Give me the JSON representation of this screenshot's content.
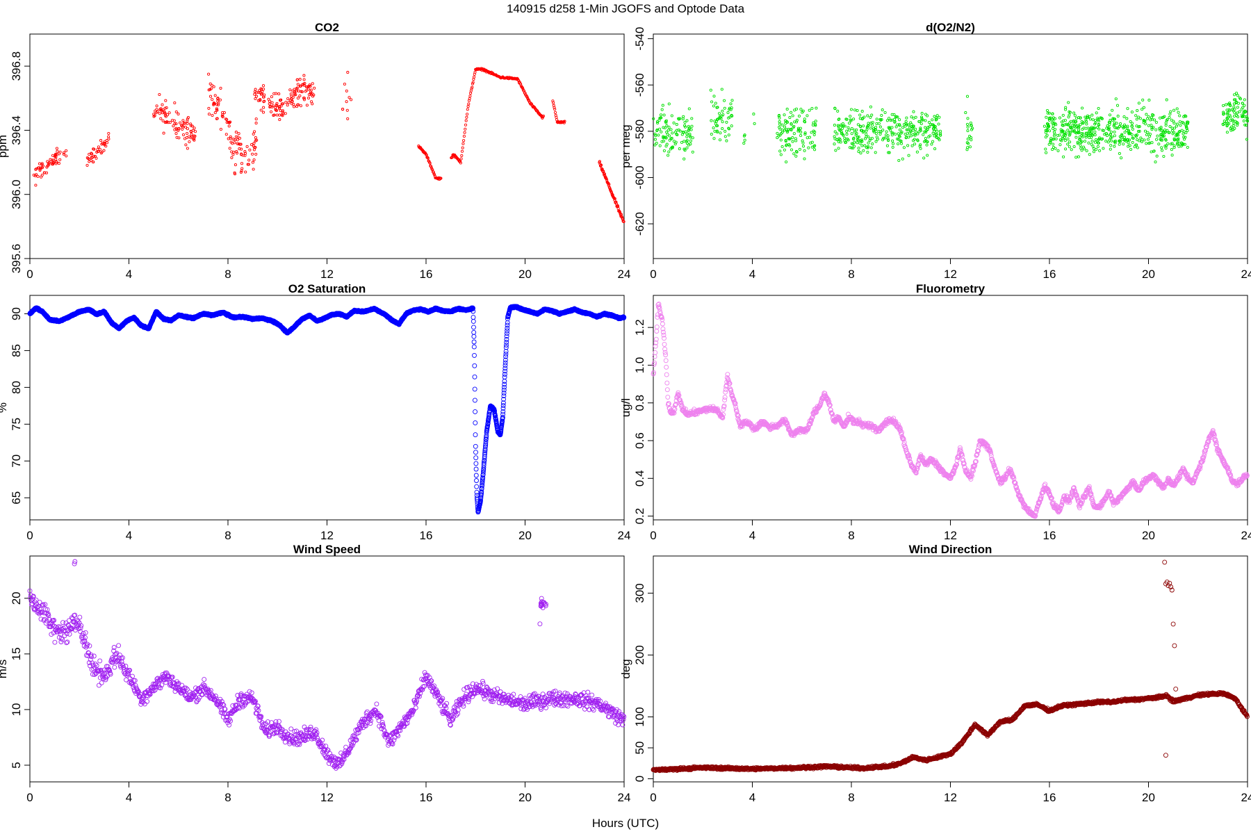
{
  "figure": {
    "title": "140915   d258   1-Min  JGOFS and Optode Data",
    "xlabel": "Hours (UTC)"
  },
  "chart_data": [
    {
      "id": "co2",
      "type": "scatter",
      "title": "CO2",
      "ylabel": "ppm",
      "color": "#ff0000",
      "xlim": [
        0,
        24
      ],
      "ylim": [
        395.6,
        397.0
      ],
      "xticks": [
        0,
        4,
        8,
        12,
        16,
        20,
        24
      ],
      "xtick_labels": [
        "0",
        "4",
        "8",
        "12",
        "16",
        "20",
        "24"
      ],
      "yticks": [
        395.6,
        396.0,
        396.4,
        396.8
      ],
      "ytick_labels": [
        "395.6",
        "396.0",
        "396.4",
        "396.8"
      ],
      "ylabel_rotated": true,
      "point_size": 1.6,
      "series_hint": "gapped 1-min CO2; ~396.0-396.5 hrs 0-4, scattered 396.0-396.9 hrs 5-13, smooth arc 396.3->396.8->396.4 hrs 15.7-21.6, falling 396.2->395.8 hrs 23-24"
    },
    {
      "id": "do2n2",
      "type": "scatter",
      "title": "d(O2/N2)",
      "ylabel": "per meg",
      "color": "#00e000",
      "xlim": [
        0,
        24
      ],
      "ylim": [
        -635,
        -538
      ],
      "xticks": [
        0,
        4,
        8,
        12,
        16,
        20,
        24
      ],
      "xtick_labels": [
        "0",
        "4",
        "8",
        "12",
        "16",
        "20",
        "24"
      ],
      "yticks": [
        -620,
        -600,
        -580,
        -560,
        -540
      ],
      "ytick_labels": [
        "-620",
        "-600",
        "-580",
        "-560",
        "-540"
      ],
      "ylabel_rotated": true,
      "point_size": 1.6,
      "series_hint": "noisy scatter centered near -580 per meg, ranging -630 to -543, with data gaps"
    },
    {
      "id": "o2sat",
      "type": "scatter",
      "title": "O2 Saturation",
      "ylabel": "%",
      "color": "#0000ff",
      "xlim": [
        0,
        24
      ],
      "ylim": [
        62,
        92.5
      ],
      "xticks": [
        0,
        4,
        8,
        12,
        16,
        20,
        24
      ],
      "xtick_labels": [
        "0",
        "4",
        "8",
        "12",
        "16",
        "20",
        "24"
      ],
      "yticks": [
        65,
        70,
        75,
        80,
        85,
        90
      ],
      "ytick_labels": [
        "65",
        "70",
        "75",
        "80",
        "85",
        "90"
      ],
      "ylabel_rotated": false,
      "point_size": 3,
      "x": [
        0,
        0.25,
        0.5,
        0.8,
        1.2,
        1.6,
        2,
        2.4,
        2.7,
        3,
        3.3,
        3.6,
        3.9,
        4.2,
        4.5,
        4.8,
        5.1,
        5.4,
        5.7,
        6,
        6.3,
        6.6,
        7,
        7.4,
        7.8,
        8.2,
        8.6,
        9,
        9.4,
        9.8,
        10.1,
        10.4,
        10.7,
        11,
        11.3,
        11.6,
        11.9,
        12.2,
        12.5,
        12.8,
        13.1,
        13.5,
        13.9,
        14.3,
        14.6,
        14.9,
        15.2,
        15.5,
        15.8,
        16.1,
        16.4,
        16.7,
        17,
        17.3,
        17.6,
        17.9,
        17.95,
        18.0,
        18.05,
        18.1,
        18.2,
        18.3,
        18.45,
        18.6,
        18.75,
        18.9,
        19.0,
        19.1,
        19.2,
        19.3,
        19.4,
        19.6,
        19.9,
        20.2,
        20.5,
        20.8,
        21.1,
        21.4,
        21.7,
        22,
        22.3,
        22.6,
        22.9,
        23.2,
        23.5,
        23.8,
        24
      ],
      "y": [
        90.0,
        90.8,
        90.3,
        89.2,
        89.0,
        89.6,
        90.3,
        90.6,
        89.9,
        90.3,
        88.8,
        88.0,
        89.0,
        89.5,
        88.4,
        88.0,
        90.3,
        89.3,
        89.1,
        89.8,
        89.6,
        89.4,
        90.0,
        89.8,
        90.2,
        89.5,
        89.6,
        89.3,
        89.4,
        89.0,
        88.4,
        87.4,
        88.3,
        89.3,
        89.8,
        89.0,
        89.4,
        89.9,
        90.0,
        89.6,
        90.4,
        90.3,
        90.7,
        90.0,
        89.2,
        88.6,
        90.0,
        90.5,
        90.6,
        90.3,
        90.7,
        90.4,
        90.3,
        90.7,
        90.5,
        90.7,
        85.0,
        72.0,
        65.5,
        63.0,
        64.5,
        68.0,
        74.0,
        77.5,
        77.0,
        74.0,
        73.5,
        76.0,
        83.0,
        89.5,
        90.8,
        91.0,
        90.6,
        90.3,
        90.0,
        90.6,
        90.4,
        90.0,
        90.3,
        90.6,
        90.2,
        90.0,
        89.6,
        90.0,
        89.8,
        89.4,
        89.5
      ]
    },
    {
      "id": "fluor",
      "type": "scatter",
      "title": "Fluorometry",
      "ylabel": "ug/l",
      "color": "#ee82ee",
      "xlim": [
        0,
        24
      ],
      "ylim": [
        0.18,
        1.37
      ],
      "xticks": [
        0,
        4,
        8,
        12,
        16,
        20,
        24
      ],
      "xtick_labels": [
        "0",
        "4",
        "8",
        "12",
        "16",
        "20",
        "24"
      ],
      "yticks": [
        0.2,
        0.4,
        0.6,
        0.8,
        1.0,
        1.2
      ],
      "ytick_labels": [
        "0.2",
        "0.4",
        "0.6",
        "0.8",
        "1.0",
        "1.2"
      ],
      "ylabel_rotated": true,
      "point_size": 3,
      "x": [
        0,
        0.1,
        0.2,
        0.35,
        0.5,
        0.6,
        0.7,
        0.85,
        1.0,
        1.2,
        1.4,
        1.7,
        2.0,
        2.3,
        2.6,
        2.8,
        3.0,
        3.15,
        3.3,
        3.5,
        3.8,
        4.1,
        4.4,
        4.7,
        5.0,
        5.3,
        5.6,
        5.9,
        6.2,
        6.5,
        6.7,
        6.9,
        7.1,
        7.3,
        7.5,
        7.7,
        7.9,
        8.1,
        8.3,
        8.5,
        8.8,
        9.1,
        9.4,
        9.7,
        10.0,
        10.2,
        10.4,
        10.6,
        10.8,
        11.0,
        11.2,
        11.4,
        11.6,
        11.8,
        12.0,
        12.2,
        12.4,
        12.6,
        12.8,
        13.0,
        13.2,
        13.4,
        13.6,
        13.8,
        14.0,
        14.2,
        14.4,
        14.6,
        14.8,
        15.0,
        15.2,
        15.4,
        15.6,
        15.8,
        16.0,
        16.2,
        16.4,
        16.6,
        16.8,
        17.0,
        17.2,
        17.4,
        17.6,
        17.8,
        18.0,
        18.2,
        18.4,
        18.6,
        18.8,
        19.0,
        19.2,
        19.4,
        19.6,
        19.8,
        20.0,
        20.2,
        20.4,
        20.6,
        20.8,
        21.0,
        21.2,
        21.4,
        21.6,
        21.8,
        22.0,
        22.2,
        22.4,
        22.6,
        22.8,
        23.0,
        23.2,
        23.4,
        23.6,
        23.8,
        24.0
      ],
      "y": [
        0.95,
        1.1,
        1.32,
        1.25,
        1.05,
        0.8,
        0.75,
        0.76,
        0.85,
        0.76,
        0.74,
        0.75,
        0.76,
        0.77,
        0.76,
        0.72,
        0.95,
        0.85,
        0.8,
        0.68,
        0.7,
        0.66,
        0.7,
        0.67,
        0.68,
        0.71,
        0.63,
        0.66,
        0.65,
        0.75,
        0.78,
        0.85,
        0.8,
        0.7,
        0.72,
        0.67,
        0.73,
        0.7,
        0.7,
        0.68,
        0.68,
        0.65,
        0.7,
        0.71,
        0.65,
        0.55,
        0.48,
        0.43,
        0.52,
        0.47,
        0.5,
        0.48,
        0.45,
        0.42,
        0.4,
        0.46,
        0.55,
        0.45,
        0.4,
        0.48,
        0.6,
        0.58,
        0.55,
        0.45,
        0.38,
        0.4,
        0.45,
        0.38,
        0.3,
        0.25,
        0.22,
        0.2,
        0.28,
        0.36,
        0.32,
        0.25,
        0.23,
        0.3,
        0.28,
        0.35,
        0.25,
        0.3,
        0.35,
        0.25,
        0.25,
        0.28,
        0.33,
        0.27,
        0.29,
        0.33,
        0.35,
        0.38,
        0.33,
        0.38,
        0.4,
        0.42,
        0.38,
        0.35,
        0.4,
        0.36,
        0.4,
        0.45,
        0.4,
        0.38,
        0.44,
        0.5,
        0.6,
        0.65,
        0.55,
        0.5,
        0.45,
        0.38,
        0.37,
        0.4,
        0.42
      ]
    },
    {
      "id": "wspd",
      "type": "scatter",
      "title": "Wind Speed",
      "ylabel": "m/s",
      "color": "#a020f0",
      "xlim": [
        0,
        24
      ],
      "ylim": [
        3.5,
        23.8
      ],
      "xticks": [
        0,
        4,
        8,
        12,
        16,
        20,
        24
      ],
      "xtick_labels": [
        "0",
        "4",
        "8",
        "12",
        "16",
        "20",
        "24"
      ],
      "yticks": [
        5,
        10,
        15,
        20
      ],
      "ytick_labels": [
        "5",
        "10",
        "15",
        "20"
      ],
      "ylabel_rotated": false,
      "point_size": 3,
      "series_hint": "decreasing from ~20 m/s at hour 0 to ~5 m/s at hour 12.5, recovering to ~11 m/s by hour 17-24, brief 19-20 m/s burst near hour 20.8"
    },
    {
      "id": "wdir",
      "type": "scatter",
      "title": "Wind Direction",
      "ylabel": "deg",
      "color": "#8b0000",
      "xlim": [
        0,
        24
      ],
      "ylim": [
        -5,
        360
      ],
      "xticks": [
        0,
        4,
        8,
        12,
        16,
        20,
        24
      ],
      "xtick_labels": [
        "0",
        "4",
        "8",
        "12",
        "16",
        "20",
        "24"
      ],
      "yticks": [
        0,
        50,
        100,
        200,
        300
      ],
      "ytick_labels": [
        "0",
        "50",
        "100",
        "200",
        "300"
      ],
      "ylabel_rotated": true,
      "point_size": 3,
      "x": [
        0,
        1,
        2,
        3,
        4,
        5,
        6,
        7,
        8,
        8.5,
        9,
        9.5,
        10,
        10.5,
        11,
        11.5,
        12,
        12.5,
        13,
        13.5,
        14,
        14.5,
        15,
        15.5,
        16,
        16.5,
        17,
        17.5,
        18,
        18.5,
        19,
        19.5,
        20,
        20.5,
        20.7,
        21,
        21.5,
        22,
        22.5,
        23,
        23.5,
        24
      ],
      "y": [
        14,
        16,
        18,
        17,
        16,
        17,
        18,
        20,
        18,
        17,
        19,
        20,
        25,
        35,
        30,
        35,
        40,
        60,
        88,
        70,
        92,
        95,
        118,
        120,
        110,
        118,
        120,
        122,
        124,
        124,
        127,
        128,
        130,
        132,
        135,
        125,
        130,
        135,
        137,
        138,
        130,
        100
      ],
      "outliers": [
        {
          "x": 20.65,
          "y": 350
        },
        {
          "x": 20.7,
          "y": 315
        },
        {
          "x": 20.75,
          "y": 318
        },
        {
          "x": 20.8,
          "y": 312
        },
        {
          "x": 20.85,
          "y": 316
        },
        {
          "x": 20.9,
          "y": 310
        },
        {
          "x": 20.95,
          "y": 305
        },
        {
          "x": 21.0,
          "y": 250
        },
        {
          "x": 21.05,
          "y": 215
        },
        {
          "x": 21.1,
          "y": 145
        },
        {
          "x": 20.7,
          "y": 38
        }
      ]
    }
  ]
}
